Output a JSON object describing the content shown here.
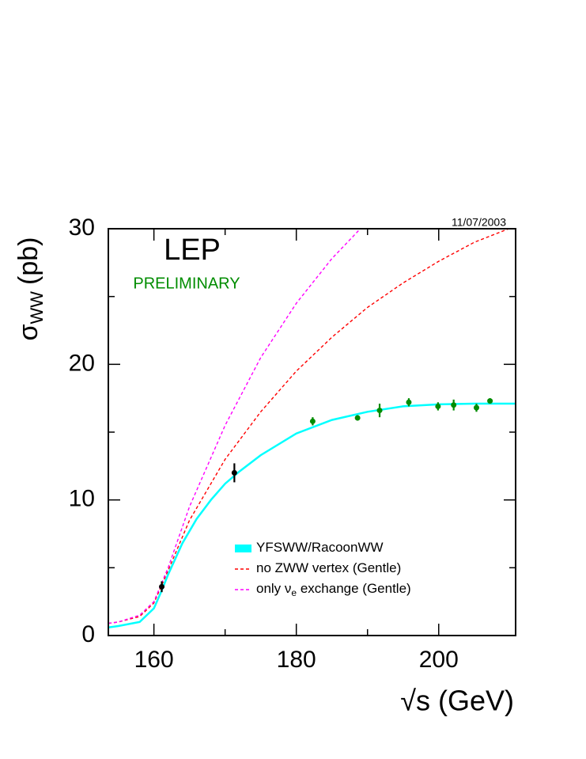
{
  "chart_data": {
    "type": "line",
    "title": "LEP",
    "subtitle": "PRELIMINARY",
    "date": "11/07/2003",
    "y_label": [
      "σ",
      "WW",
      "(pb)"
    ],
    "x_label": "√s (GeV)",
    "xlim": [
      153.6,
      210.8
    ],
    "ylim": [
      0,
      30
    ],
    "xticks": [
      160,
      180,
      200
    ],
    "xminorticks": [
      170,
      190
    ],
    "yticks": [
      0,
      10,
      20,
      30
    ],
    "yminorticks": [
      5,
      15,
      25
    ],
    "series": [
      {
        "name": [
          "YFSWW/RacoonWW"
        ],
        "color": "#00ffff",
        "style": "band",
        "x": [
          153.6,
          155,
          158,
          160,
          161,
          162,
          164,
          166,
          168,
          170,
          172,
          175,
          180,
          185,
          190,
          195,
          200,
          205,
          210.8
        ],
        "values": [
          0.6,
          0.7,
          1.0,
          2.0,
          3.2,
          4.5,
          6.8,
          8.6,
          10.0,
          11.2,
          12.1,
          13.3,
          14.9,
          15.9,
          16.5,
          16.9,
          17.05,
          17.1,
          17.1
        ]
      },
      {
        "name": [
          "no ZWW vertex (Gentle)"
        ],
        "color": "#ff0000",
        "style": "dashed",
        "x": [
          153.6,
          155,
          158,
          160,
          162,
          165,
          170,
          175,
          180,
          185,
          190,
          195,
          200,
          205,
          210.8
        ],
        "values": [
          0.9,
          1.0,
          1.4,
          2.4,
          4.8,
          8.5,
          13.0,
          16.5,
          19.5,
          22.0,
          24.2,
          26.0,
          27.6,
          29.0,
          30.2
        ]
      },
      {
        "name": [
          "only ν",
          "e",
          " exchange (Gentle)"
        ],
        "color": "#ff00ff",
        "style": "dashed",
        "x": [
          153.6,
          155,
          158,
          160,
          162,
          165,
          170,
          175,
          180,
          185,
          189
        ],
        "values": [
          0.9,
          1.0,
          1.5,
          2.5,
          5.0,
          9.5,
          15.5,
          20.5,
          24.5,
          27.8,
          30.0
        ]
      }
    ],
    "points": {
      "x": [
        161.1,
        171.3,
        182.3,
        188.6,
        191.7,
        195.8,
        199.9,
        202.1,
        205.3,
        207.2
      ],
      "values": [
        3.6,
        12.0,
        15.8,
        16.05,
        16.6,
        17.2,
        16.9,
        17.0,
        16.8,
        17.3
      ],
      "errors": [
        0.4,
        0.7,
        0.3,
        0.2,
        0.5,
        0.3,
        0.3,
        0.4,
        0.3,
        0.2
      ],
      "colors": [
        "#000000",
        "#000000",
        "#008c00",
        "#008c00",
        "#008c00",
        "#008c00",
        "#008c00",
        "#008c00",
        "#008c00",
        "#008c00"
      ]
    }
  }
}
